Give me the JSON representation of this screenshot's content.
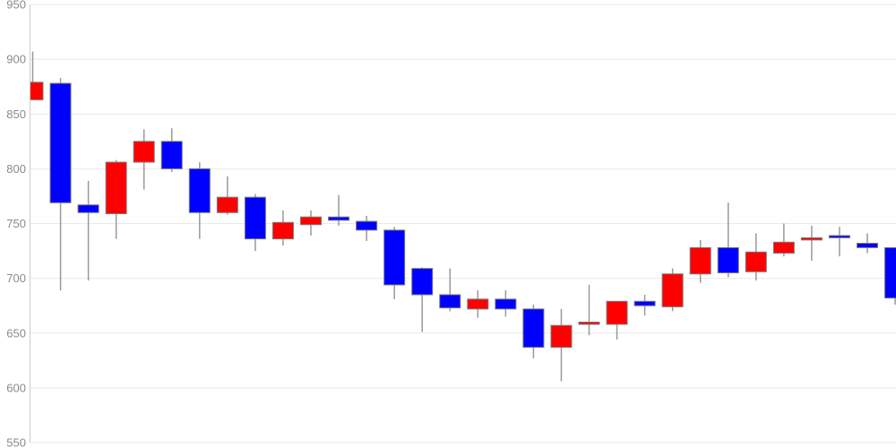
{
  "chart": {
    "colors": {
      "background": "#ffffff",
      "up": "#ff0000",
      "down": "#0000ff",
      "wick": "#999999",
      "body_border": "#7a7a7a",
      "grid": "#e9e9e9",
      "axis_line": "#cccccc",
      "tick_label": "#8a8a8a"
    }
  },
  "chart_data": {
    "type": "candlestick",
    "title": "",
    "xlabel": "",
    "ylabel": "",
    "ylim": [
      550,
      950
    ],
    "y_ticks": [
      950,
      900,
      850,
      800,
      750,
      700,
      650,
      600,
      550
    ],
    "grid": "horizontal",
    "legend": "none",
    "convention": "red = bullish (close > open), blue = bearish (close < open)",
    "candles": [
      {
        "open": 863,
        "high": 907,
        "low": 863,
        "close": 879
      },
      {
        "open": 878,
        "high": 883,
        "low": 689,
        "close": 769
      },
      {
        "open": 767,
        "high": 789,
        "low": 698,
        "close": 760
      },
      {
        "open": 759,
        "high": 808,
        "low": 736,
        "close": 806
      },
      {
        "open": 806,
        "high": 836,
        "low": 781,
        "close": 825
      },
      {
        "open": 825,
        "high": 837,
        "low": 797,
        "close": 800
      },
      {
        "open": 800,
        "high": 806,
        "low": 736,
        "close": 760
      },
      {
        "open": 760,
        "high": 793,
        "low": 758,
        "close": 774
      },
      {
        "open": 774,
        "high": 777,
        "low": 725,
        "close": 736
      },
      {
        "open": 736,
        "high": 762,
        "low": 730,
        "close": 751
      },
      {
        "open": 749,
        "high": 762,
        "low": 739,
        "close": 756
      },
      {
        "open": 756,
        "high": 776,
        "low": 748,
        "close": 753
      },
      {
        "open": 752,
        "high": 757,
        "low": 734,
        "close": 744
      },
      {
        "open": 744,
        "high": 747,
        "low": 681,
        "close": 694
      },
      {
        "open": 709,
        "high": 710,
        "low": 651,
        "close": 685
      },
      {
        "open": 685,
        "high": 709,
        "low": 670,
        "close": 673
      },
      {
        "open": 672,
        "high": 689,
        "low": 664,
        "close": 681
      },
      {
        "open": 681,
        "high": 689,
        "low": 665,
        "close": 672
      },
      {
        "open": 672,
        "high": 676,
        "low": 627,
        "close": 637
      },
      {
        "open": 637,
        "high": 672,
        "low": 606,
        "close": 657
      },
      {
        "open": 658,
        "high": 694,
        "low": 648,
        "close": 660
      },
      {
        "open": 658,
        "high": 679,
        "low": 644,
        "close": 679
      },
      {
        "open": 679,
        "high": 685,
        "low": 666,
        "close": 675
      },
      {
        "open": 674,
        "high": 709,
        "low": 670,
        "close": 704
      },
      {
        "open": 704,
        "high": 735,
        "low": 696,
        "close": 728
      },
      {
        "open": 728,
        "high": 769,
        "low": 701,
        "close": 705
      },
      {
        "open": 706,
        "high": 741,
        "low": 698,
        "close": 724
      },
      {
        "open": 723,
        "high": 750,
        "low": 720,
        "close": 733
      },
      {
        "open": 735,
        "high": 748,
        "low": 716,
        "close": 737
      },
      {
        "open": 739,
        "high": 747,
        "low": 720,
        "close": 737
      },
      {
        "open": 732,
        "high": 741,
        "low": 723,
        "close": 728
      },
      {
        "open": 728,
        "high": 728,
        "low": 676,
        "close": 682
      }
    ]
  }
}
